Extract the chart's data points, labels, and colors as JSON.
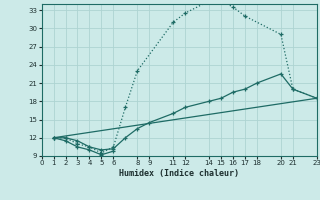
{
  "xlabel": "Humidex (Indice chaleur)",
  "bg_color": "#cceae8",
  "grid_color": "#aed4d2",
  "line_color": "#1e6b65",
  "xlim": [
    0,
    23
  ],
  "ylim": [
    9,
    34
  ],
  "xticks": [
    0,
    1,
    2,
    3,
    4,
    5,
    6,
    8,
    9,
    11,
    12,
    14,
    15,
    16,
    17,
    18,
    20,
    21,
    23
  ],
  "yticks": [
    9,
    12,
    15,
    18,
    21,
    24,
    27,
    30,
    33
  ],
  "line1_x": [
    1,
    2,
    3,
    4,
    5,
    6,
    7,
    8,
    11,
    12,
    14,
    15,
    16,
    17,
    20,
    21,
    23
  ],
  "line1_y": [
    12,
    12,
    11,
    10.5,
    9.5,
    10.5,
    17,
    23,
    31,
    32.5,
    34.5,
    34.5,
    33.5,
    32,
    29,
    20,
    18.5
  ],
  "line2_x": [
    1,
    2,
    3,
    4,
    5,
    6,
    7,
    8,
    9,
    11,
    12,
    14,
    15,
    16,
    17,
    18,
    20,
    21,
    23
  ],
  "line2_y": [
    12,
    12,
    11.5,
    10.5,
    10,
    10.2,
    12,
    13.5,
    14.5,
    16,
    17,
    18,
    18.5,
    19.5,
    20,
    21,
    22.5,
    20,
    18.5
  ],
  "line3_x": [
    1,
    23
  ],
  "line3_y": [
    12,
    18.5
  ],
  "line4_x": [
    1,
    2,
    3,
    4,
    5,
    6
  ],
  "line4_y": [
    12,
    11.5,
    10.5,
    10,
    9.2,
    9.8
  ]
}
